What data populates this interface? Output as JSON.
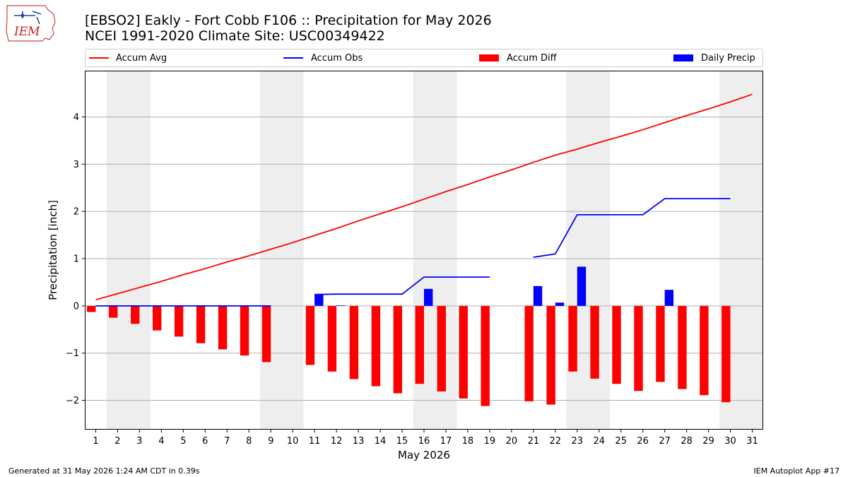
{
  "header": {
    "title_line1": "[EBSO2] Eakly - Fort Cobb F106 :: Precipitation for May 2026",
    "title_line2": "NCEI 1991-2020 Climate Site: USC00349422"
  },
  "logo": {
    "text": "IEM",
    "icon": "iowa-state-outline-icon"
  },
  "footer": {
    "left": "Generated at 31 May 2026 1:24 AM CDT in 0.39s",
    "right": "IEM Autoplot App #17"
  },
  "colors": {
    "avg": "#ff0000",
    "obs": "#0000ff",
    "diff": "#ff0000",
    "daily": "#0000ff",
    "weekend": "#eeeeee",
    "grid": "#b0b0b0"
  },
  "chart_data": {
    "type": "bar",
    "title": "[EBSO2] Eakly - Fort Cobb F106 :: Precipitation for May 2026",
    "subtitle": "NCEI 1991-2020 Climate Site: USC00349422",
    "xlabel": "May 2026",
    "ylabel": "Precipitation [inch]",
    "xlim": [
      0.5,
      31.5
    ],
    "ylim": [
      -2.62,
      4.98
    ],
    "x_ticks": [
      1,
      2,
      3,
      4,
      5,
      6,
      7,
      8,
      9,
      10,
      11,
      12,
      13,
      14,
      15,
      16,
      17,
      18,
      19,
      20,
      21,
      22,
      23,
      24,
      25,
      26,
      27,
      28,
      29,
      30,
      31
    ],
    "y_ticks": [
      -2,
      -1,
      0,
      1,
      2,
      3,
      4
    ],
    "y_tick_labels": [
      "−2",
      "−1",
      "0",
      "1",
      "2",
      "3",
      "4"
    ],
    "grid": "horizontal",
    "legend_position": "top",
    "weekend_shading": [
      [
        1.5,
        3.5
      ],
      [
        8.5,
        10.5
      ],
      [
        15.5,
        17.5
      ],
      [
        22.5,
        24.5
      ],
      [
        29.5,
        31.5
      ]
    ],
    "series": [
      {
        "name": "Accum Avg",
        "kind": "line",
        "x": [
          1,
          2,
          3,
          4,
          5,
          6,
          7,
          8,
          9,
          10,
          11,
          12,
          13,
          14,
          15,
          16,
          17,
          18,
          19,
          20,
          21,
          22,
          23,
          24,
          25,
          26,
          27,
          28,
          29,
          30,
          31
        ],
        "values": [
          0.13,
          0.26,
          0.39,
          0.52,
          0.66,
          0.79,
          0.93,
          1.06,
          1.2,
          1.34,
          1.49,
          1.64,
          1.8,
          1.95,
          2.1,
          2.26,
          2.42,
          2.57,
          2.73,
          2.88,
          3.04,
          3.19,
          3.32,
          3.46,
          3.59,
          3.73,
          3.88,
          4.03,
          4.17,
          4.32,
          4.48
        ]
      },
      {
        "name": "Accum Obs",
        "kind": "line",
        "x": [
          1,
          2,
          3,
          4,
          5,
          6,
          7,
          8,
          9,
          11,
          12,
          13,
          14,
          15,
          16,
          17,
          18,
          19,
          21,
          22,
          23,
          24,
          25,
          26,
          27,
          28,
          29,
          30
        ],
        "values": [
          0,
          0,
          0,
          0,
          0,
          0,
          0,
          0,
          0,
          0.24,
          0.25,
          0.25,
          0.25,
          0.25,
          0.61,
          0.61,
          0.61,
          0.61,
          1.03,
          1.1,
          1.93,
          1.93,
          1.93,
          1.93,
          2.27,
          2.27,
          2.27,
          2.27
        ],
        "segments": [
          [
            1,
            9
          ],
          [
            11,
            19
          ],
          [
            21,
            30
          ]
        ]
      },
      {
        "name": "Accum Diff",
        "kind": "bar",
        "x": [
          1,
          2,
          3,
          4,
          5,
          6,
          7,
          8,
          9,
          11,
          12,
          13,
          14,
          15,
          16,
          17,
          18,
          19,
          21,
          22,
          23,
          24,
          25,
          26,
          27,
          28,
          29,
          30
        ],
        "values": [
          -0.13,
          -0.25,
          -0.38,
          -0.52,
          -0.65,
          -0.79,
          -0.92,
          -1.05,
          -1.19,
          -1.25,
          -1.39,
          -1.55,
          -1.7,
          -1.85,
          -1.65,
          -1.81,
          -1.96,
          -2.12,
          -2.02,
          -2.09,
          -1.39,
          -1.54,
          -1.65,
          -1.8,
          -1.61,
          -1.76,
          -1.89,
          -2.04
        ]
      },
      {
        "name": "Daily Precip",
        "kind": "bar",
        "x": [
          1,
          2,
          3,
          4,
          5,
          6,
          7,
          8,
          9,
          11,
          12,
          13,
          14,
          15,
          16,
          17,
          18,
          19,
          21,
          22,
          23,
          24,
          25,
          26,
          27,
          28,
          29,
          30
        ],
        "values": [
          0,
          0,
          0,
          0,
          0,
          0,
          0,
          0,
          0,
          0.24,
          0.01,
          0,
          0,
          0,
          0.36,
          0,
          0,
          0,
          0.42,
          0.07,
          0.83,
          0,
          0,
          0,
          0.34,
          0,
          0,
          0
        ]
      }
    ]
  }
}
